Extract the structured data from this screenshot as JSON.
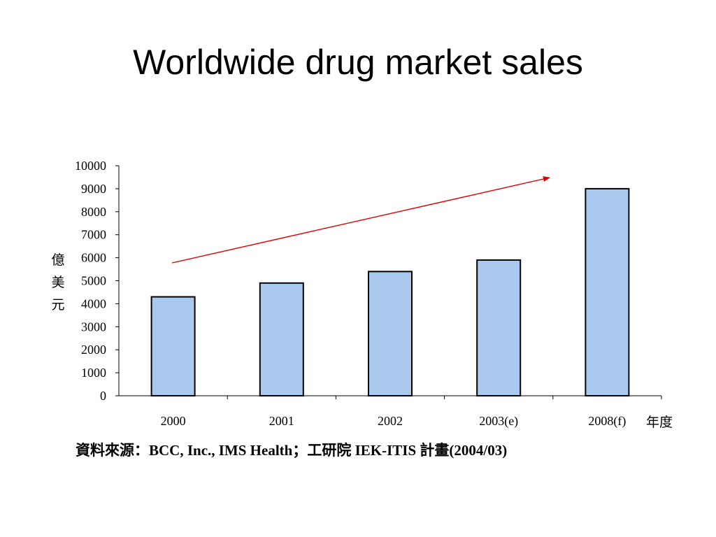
{
  "slide": {
    "title": "Worldwide drug market sales",
    "source": "資料來源：BCC, Inc., IMS Health；工研院 IEK-ITIS 計畫(2004/03)"
  },
  "chart_data": {
    "type": "bar",
    "categories": [
      "2000",
      "2001",
      "2002",
      "2003(e)",
      "2008(f)"
    ],
    "values": [
      4300,
      4900,
      5400,
      5900,
      9000
    ],
    "ylabel": "億美元",
    "xlabel": "年度",
    "ylim": [
      0,
      10000
    ],
    "yticks": [
      0,
      1000,
      2000,
      3000,
      4000,
      5000,
      6000,
      7000,
      8000,
      9000,
      10000
    ],
    "grid": false,
    "bar_color": "#a9c9ef",
    "bar_edge_color": "#000000",
    "trend_arrow_color": "#e00000"
  }
}
